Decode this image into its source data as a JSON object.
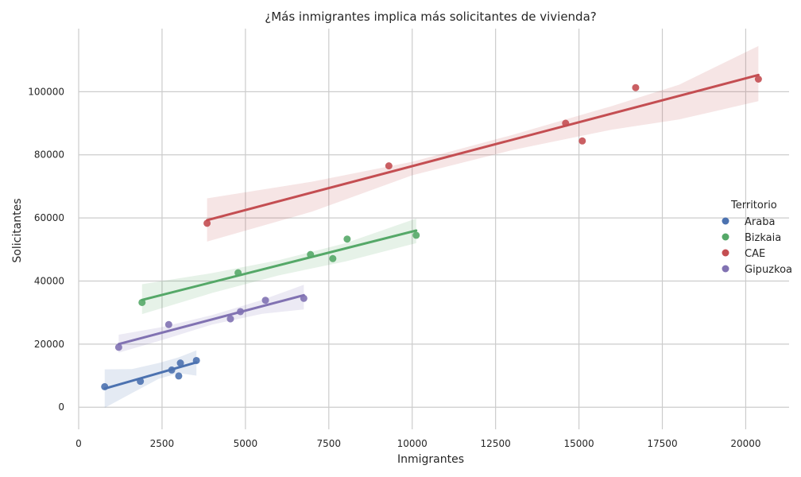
{
  "chart_data": {
    "type": "scatter",
    "title": "¿Más inmigrantes implica más solicitantes de vivienda?",
    "xlabel": "Inmigrantes",
    "ylabel": "Solicitantes",
    "xlim": [
      0,
      21300
    ],
    "ylim": [
      -7000,
      120000
    ],
    "xticks": [
      0,
      2500,
      5000,
      7500,
      10000,
      12500,
      15000,
      17500,
      20000
    ],
    "xtick_labels": [
      "0",
      "2500",
      "5000",
      "7500",
      "10000",
      "12500",
      "15000",
      "17500",
      "20000"
    ],
    "yticks": [
      0,
      20000,
      40000,
      60000,
      80000,
      100000
    ],
    "ytick_labels": [
      "0",
      "20000",
      "40000",
      "60000",
      "80000",
      "100000"
    ],
    "grid": true,
    "legend": {
      "title": "Territorio",
      "position": "right"
    },
    "series": [
      {
        "name": "Araba",
        "color": "#4c72b0",
        "x": [
          780,
          1850,
          2790,
          3000,
          3050,
          3530
        ],
        "y": [
          6500,
          8200,
          11800,
          9900,
          14000,
          14800
        ],
        "fit": {
          "x": [
            780,
            3530
          ],
          "y": [
            5900,
            14200
          ]
        },
        "ci": {
          "x": [
            780,
            1600,
            2400,
            3000,
            3530
          ],
          "upper": [
            12000,
            12100,
            14000,
            15800,
            18000
          ],
          "lower": [
            -200,
            4500,
            9000,
            10800,
            10000
          ]
        }
      },
      {
        "name": "Bizkaia",
        "color": "#55a868",
        "x": [
          1900,
          4780,
          6950,
          7620,
          8050,
          10120
        ],
        "y": [
          33200,
          42600,
          48400,
          47100,
          53300,
          54500
        ],
        "fit": {
          "x": [
            1900,
            10120
          ],
          "y": [
            34000,
            56000
          ]
        },
        "ci": {
          "x": [
            1900,
            4000,
            6000,
            8000,
            10120
          ],
          "upper": [
            39000,
            42500,
            46600,
            52000,
            59800
          ],
          "lower": [
            29500,
            36200,
            41800,
            46200,
            52000
          ]
        }
      },
      {
        "name": "CAE",
        "color": "#c44e52",
        "x": [
          3850,
          9300,
          14600,
          15100,
          16700,
          20380
        ],
        "y": [
          58300,
          76500,
          90000,
          84400,
          101300,
          104000
        ],
        "fit": {
          "x": [
            3850,
            20380
          ],
          "y": [
            59300,
            105300
          ]
        },
        "ci": {
          "x": [
            3850,
            7000,
            10000,
            13000,
            16000,
            18000,
            20380
          ],
          "upper": [
            66200,
            71500,
            77800,
            86300,
            95500,
            102200,
            114500
          ],
          "lower": [
            52500,
            62000,
            73500,
            81500,
            88000,
            91200,
            97000
          ]
        }
      },
      {
        "name": "Gipuzkoa",
        "color": "#8172b2",
        "x": [
          1200,
          2700,
          4550,
          4850,
          5600,
          6750
        ],
        "y": [
          19000,
          26200,
          28000,
          30300,
          33900,
          34500
        ],
        "fit": {
          "x": [
            1200,
            6750
          ],
          "y": [
            20000,
            35500
          ]
        },
        "ci": {
          "x": [
            1200,
            2500,
            4000,
            5500,
            6750
          ],
          "upper": [
            23000,
            25400,
            29200,
            34000,
            38800
          ],
          "lower": [
            17300,
            21300,
            26200,
            29600,
            31000
          ]
        }
      }
    ]
  }
}
